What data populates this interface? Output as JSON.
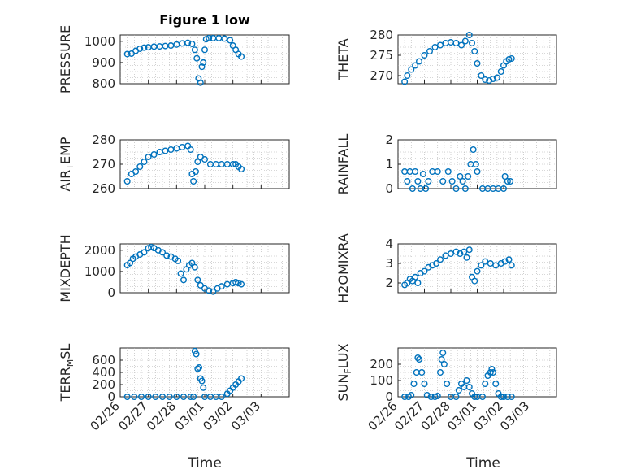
{
  "figure": {
    "title": "Figure 1 low",
    "marker_color": "#0072BD",
    "x_tick_labels": [
      "02/26",
      "02/27",
      "02/28",
      "03/01",
      "03/02",
      "03/03"
    ],
    "xlabel": "Time"
  },
  "chart_data": [
    {
      "type": "scatter",
      "marker": "circle",
      "ylabel": "PRESSURE",
      "title": "Figure 1 low",
      "xlim": [
        0,
        6
      ],
      "ylim": [
        800,
        1030
      ],
      "yticks": [
        800,
        900,
        1000
      ],
      "x": [
        0.25,
        0.4,
        0.55,
        0.7,
        0.85,
        1.0,
        1.2,
        1.4,
        1.6,
        1.8,
        2.0,
        2.2,
        2.4,
        2.55,
        2.65,
        2.72,
        2.78,
        2.85,
        2.9,
        2.95,
        3.0,
        3.05,
        3.15,
        3.3,
        3.5,
        3.7,
        3.9,
        4.0,
        4.1,
        4.2,
        4.3
      ],
      "y": [
        940,
        942,
        955,
        965,
        970,
        972,
        975,
        976,
        978,
        980,
        985,
        990,
        993,
        988,
        960,
        920,
        825,
        805,
        880,
        900,
        960,
        1010,
        1015,
        1015,
        1015,
        1013,
        1005,
        980,
        960,
        940,
        928
      ]
    },
    {
      "type": "scatter",
      "marker": "circle",
      "ylabel": "THETA",
      "xlim": [
        0,
        6
      ],
      "ylim": [
        268,
        280
      ],
      "yticks": [
        270,
        275,
        280
      ],
      "x": [
        0.25,
        0.35,
        0.5,
        0.65,
        0.8,
        1.0,
        1.2,
        1.4,
        1.6,
        1.8,
        2.0,
        2.2,
        2.4,
        2.55,
        2.7,
        2.8,
        2.9,
        3.0,
        3.15,
        3.3,
        3.45,
        3.6,
        3.75,
        3.9,
        4.0,
        4.1,
        4.2,
        4.3
      ],
      "y": [
        268.5,
        270,
        271.5,
        272.5,
        273.5,
        275,
        276,
        277,
        277.5,
        278,
        278.2,
        278,
        277.5,
        278.5,
        280,
        278,
        276,
        273,
        270,
        269,
        268.8,
        269.2,
        269.5,
        271,
        272.5,
        273.5,
        274,
        274.2
      ]
    },
    {
      "type": "scatter",
      "marker": "circle",
      "ylabel": "AIR_TEMP",
      "xlim": [
        0,
        6
      ],
      "ylim": [
        260,
        280
      ],
      "yticks": [
        260,
        270,
        280
      ],
      "x": [
        0.25,
        0.4,
        0.55,
        0.7,
        0.85,
        1.0,
        1.2,
        1.4,
        1.6,
        1.8,
        2.0,
        2.2,
        2.4,
        2.5,
        2.55,
        2.6,
        2.68,
        2.75,
        2.85,
        3.0,
        3.2,
        3.4,
        3.6,
        3.8,
        4.0,
        4.1,
        4.2,
        4.3
      ],
      "y": [
        263,
        266,
        267,
        269,
        271,
        273,
        274,
        275,
        275.5,
        276,
        276.5,
        277,
        277.5,
        276,
        266,
        263,
        267,
        271,
        273,
        272,
        270,
        270,
        270,
        270,
        270,
        270,
        269,
        268
      ]
    },
    {
      "type": "scatter",
      "marker": "circle",
      "ylabel": "RAINFALL",
      "xlim": [
        0,
        6
      ],
      "ylim": [
        0,
        2
      ],
      "yticks": [
        0,
        1,
        2
      ],
      "x": [
        0.25,
        0.35,
        0.45,
        0.55,
        0.65,
        0.75,
        0.85,
        0.95,
        1.05,
        1.15,
        1.3,
        1.5,
        1.7,
        1.9,
        2.05,
        2.2,
        2.35,
        2.45,
        2.55,
        2.65,
        2.75,
        2.85,
        2.95,
        3.0,
        3.2,
        3.4,
        3.6,
        3.8,
        4.0,
        4.05,
        4.15,
        4.25
      ],
      "y": [
        0.7,
        0.3,
        0.7,
        0,
        0.7,
        0.3,
        0,
        0.6,
        0,
        0.3,
        0.7,
        0.7,
        0.3,
        0.7,
        0.3,
        0,
        0.5,
        0.3,
        0,
        0.5,
        1.0,
        1.6,
        1.0,
        0.7,
        0,
        0,
        0,
        0,
        0,
        0.5,
        0.3,
        0.3
      ]
    },
    {
      "type": "scatter",
      "marker": "circle",
      "ylabel": "MIXDEPTH",
      "xlim": [
        0,
        6
      ],
      "ylim": [
        0,
        2300
      ],
      "yticks": [
        0,
        1000,
        2000
      ],
      "x": [
        0.25,
        0.35,
        0.45,
        0.55,
        0.7,
        0.85,
        1.0,
        1.1,
        1.2,
        1.35,
        1.5,
        1.65,
        1.8,
        1.95,
        2.05,
        2.15,
        2.25,
        2.35,
        2.45,
        2.55,
        2.65,
        2.75,
        2.85,
        3.0,
        3.15,
        3.3,
        3.45,
        3.6,
        3.8,
        4.0,
        4.1,
        4.2,
        4.3
      ],
      "y": [
        1300,
        1400,
        1600,
        1700,
        1800,
        1900,
        2100,
        2150,
        2100,
        2000,
        1900,
        1750,
        1700,
        1600,
        1500,
        900,
        600,
        1100,
        1300,
        1400,
        1200,
        600,
        350,
        200,
        100,
        50,
        200,
        300,
        400,
        450,
        500,
        450,
        400
      ]
    },
    {
      "type": "scatter",
      "marker": "circle",
      "ylabel": "H2OMIXRA",
      "xlim": [
        0,
        6
      ],
      "ylim": [
        1.5,
        4
      ],
      "yticks": [
        2,
        3,
        4
      ],
      "x": [
        0.25,
        0.35,
        0.45,
        0.55,
        0.65,
        0.75,
        0.85,
        1.0,
        1.15,
        1.3,
        1.45,
        1.6,
        1.8,
        2.0,
        2.2,
        2.35,
        2.5,
        2.6,
        2.7,
        2.8,
        2.9,
        3.0,
        3.15,
        3.3,
        3.5,
        3.7,
        3.9,
        4.05,
        4.2,
        4.3
      ],
      "y": [
        1.9,
        2.0,
        2.2,
        2.1,
        2.3,
        2.0,
        2.5,
        2.6,
        2.8,
        2.9,
        3.0,
        3.2,
        3.4,
        3.5,
        3.6,
        3.5,
        3.6,
        3.3,
        3.7,
        2.3,
        2.1,
        2.6,
        2.9,
        3.1,
        3.0,
        2.9,
        3.0,
        3.1,
        3.2,
        2.9
      ]
    },
    {
      "type": "scatter",
      "marker": "circle",
      "ylabel": "TERR_MSL",
      "xlim": [
        0,
        6
      ],
      "ylim": [
        0,
        800
      ],
      "yticks": [
        0,
        200,
        400,
        600
      ],
      "x": [
        0.25,
        0.5,
        0.75,
        1.0,
        1.25,
        1.5,
        1.75,
        2.0,
        2.25,
        2.5,
        2.6,
        2.65,
        2.7,
        2.75,
        2.8,
        2.85,
        2.9,
        2.95,
        3.0,
        3.2,
        3.4,
        3.6,
        3.8,
        3.9,
        4.0,
        4.1,
        4.2,
        4.3
      ],
      "y": [
        0,
        0,
        0,
        0,
        0,
        0,
        0,
        0,
        0,
        0,
        0,
        750,
        700,
        460,
        480,
        300,
        260,
        150,
        0,
        0,
        0,
        0,
        50,
        100,
        150,
        200,
        250,
        300
      ]
    },
    {
      "type": "scatter",
      "marker": "circle",
      "ylabel": "SUN_FLUX",
      "xlim": [
        0,
        6
      ],
      "ylim": [
        0,
        300
      ],
      "yticks": [
        0,
        100,
        200
      ],
      "x": [
        0.25,
        0.4,
        0.5,
        0.6,
        0.7,
        0.75,
        0.8,
        0.9,
        1.0,
        1.1,
        1.25,
        1.4,
        1.5,
        1.6,
        1.65,
        1.7,
        1.75,
        1.85,
        2.0,
        2.2,
        2.3,
        2.4,
        2.5,
        2.6,
        2.7,
        2.8,
        2.9,
        3.0,
        3.2,
        3.3,
        3.4,
        3.5,
        3.55,
        3.6,
        3.7,
        3.8,
        3.9,
        4.0,
        4.15,
        4.3
      ],
      "y": [
        0,
        0,
        10,
        80,
        150,
        240,
        230,
        150,
        80,
        10,
        0,
        0,
        5,
        150,
        230,
        270,
        200,
        80,
        0,
        0,
        40,
        80,
        60,
        100,
        60,
        20,
        0,
        0,
        0,
        80,
        130,
        150,
        170,
        150,
        80,
        20,
        0,
        0,
        0,
        0
      ]
    }
  ]
}
